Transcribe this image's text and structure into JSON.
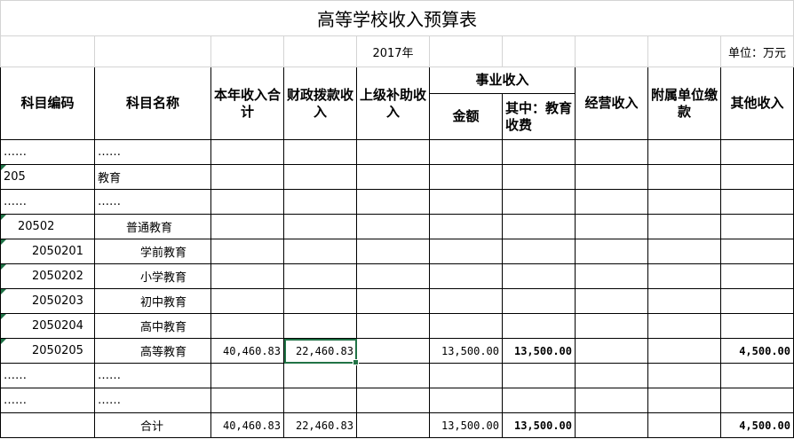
{
  "title": "高等学校收入预算表",
  "year": "2017年",
  "unit": "单位：万元",
  "headers": {
    "code": "科目编码",
    "name": "科目名称",
    "total": "本年收入合计",
    "fiscal": "财政拨款收入",
    "upper": "上级补助收入",
    "business": "事业收入",
    "amount": "金额",
    "tuition": "其中：教育收费",
    "operating": "经营收入",
    "affiliated": "附属单位缴款",
    "other": "其他收入"
  },
  "rows": [
    {
      "code": "……",
      "name": "……",
      "total": "",
      "fiscal": "",
      "amount": "",
      "tuition": "",
      "other": ""
    },
    {
      "code": "205",
      "name": "教育",
      "total": "",
      "fiscal": "",
      "amount": "",
      "tuition": "",
      "other": ""
    },
    {
      "code": "……",
      "name": "……",
      "total": "",
      "fiscal": "",
      "amount": "",
      "tuition": "",
      "other": ""
    },
    {
      "code": "20502",
      "name": "普通教育",
      "total": "",
      "fiscal": "",
      "amount": "",
      "tuition": "",
      "other": ""
    },
    {
      "code": "2050201",
      "name": "学前教育",
      "total": "",
      "fiscal": "",
      "amount": "",
      "tuition": "",
      "other": ""
    },
    {
      "code": "2050202",
      "name": "小学教育",
      "total": "",
      "fiscal": "",
      "amount": "",
      "tuition": "",
      "other": ""
    },
    {
      "code": "2050203",
      "name": "初中教育",
      "total": "",
      "fiscal": "",
      "amount": "",
      "tuition": "",
      "other": ""
    },
    {
      "code": "2050204",
      "name": "高中教育",
      "total": "",
      "fiscal": "",
      "amount": "",
      "tuition": "",
      "other": ""
    },
    {
      "code": "2050205",
      "name": "高等教育",
      "total": "40,460.83",
      "fiscal": "22,460.83",
      "amount": "13,500.00",
      "tuition": "13,500.00",
      "other": "4,500.00"
    },
    {
      "code": "……",
      "name": "……",
      "total": "",
      "fiscal": "",
      "amount": "",
      "tuition": "",
      "other": ""
    },
    {
      "code": "……",
      "name": "……",
      "total": "",
      "fiscal": "",
      "amount": "",
      "tuition": "",
      "other": ""
    },
    {
      "code": "",
      "name": "合计",
      "total": "40,460.83",
      "fiscal": "22,460.83",
      "amount": "13,500.00",
      "tuition": "13,500.00",
      "other": "4,500.00"
    }
  ],
  "selected_cell": "22,460.83",
  "colors": {
    "selection": "#217346",
    "indicator": "#1e7145"
  }
}
